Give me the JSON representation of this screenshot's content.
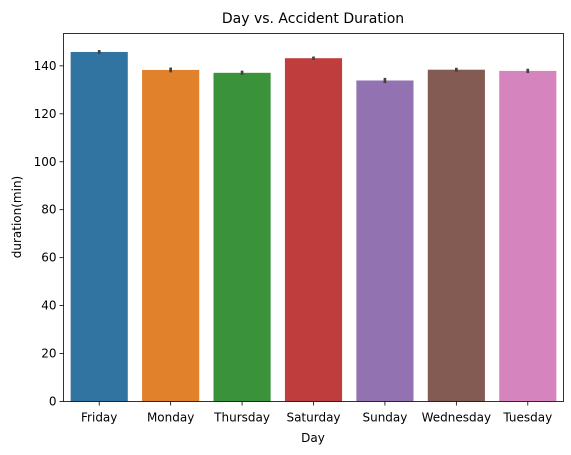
{
  "chart_data": {
    "type": "bar",
    "title": "Day vs. Accident Duration",
    "xlabel": "Day",
    "ylabel": "duration(min)",
    "categories": [
      "Friday",
      "Monday",
      "Thursday",
      "Saturday",
      "Sunday",
      "Wednesday",
      "Tuesday"
    ],
    "values": [
      145.8,
      138.3,
      137.1,
      143.2,
      133.9,
      138.4,
      137.9
    ],
    "error_bars": [
      [
        145.0,
        146.6
      ],
      [
        137.3,
        139.3
      ],
      [
        136.2,
        138.0
      ],
      [
        142.5,
        143.9
      ],
      [
        132.8,
        135.0
      ],
      [
        137.6,
        139.2
      ],
      [
        137.0,
        138.8
      ]
    ],
    "colors": [
      "#3274a1",
      "#e1812c",
      "#3a923a",
      "#c03d3e",
      "#9372b2",
      "#845b53",
      "#d684bd"
    ],
    "error_bar_color": "#424242",
    "ylim": [
      0,
      153.5
    ],
    "yticks": [
      0,
      20,
      40,
      60,
      80,
      100,
      120,
      140
    ],
    "grid": false,
    "legend": false
  }
}
